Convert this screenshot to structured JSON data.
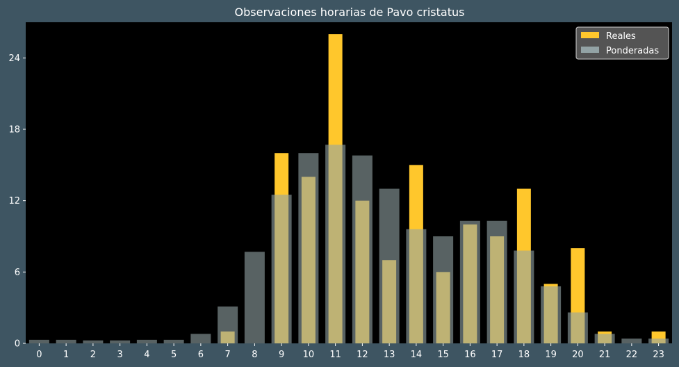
{
  "colors": {
    "background": "#3e5562",
    "plot_background": "#000000",
    "real": "#ffc72c",
    "weighted": "#93a3a5",
    "text": "#ffffff",
    "legend_background": "#545454",
    "legend_border": "#d0d0d0"
  },
  "chart_data": {
    "type": "bar",
    "title": "Observaciones horarias de Pavo cristatus",
    "xlabel": "",
    "ylabel": "",
    "categories": [
      "0",
      "1",
      "2",
      "3",
      "4",
      "5",
      "6",
      "7",
      "8",
      "9",
      "10",
      "11",
      "12",
      "13",
      "14",
      "15",
      "16",
      "17",
      "18",
      "19",
      "20",
      "21",
      "22",
      "23"
    ],
    "ylim": [
      0,
      27
    ],
    "yticks": [
      "0",
      "6",
      "12",
      "18",
      "24"
    ],
    "legend_position": "top-right",
    "grid": false,
    "series": [
      {
        "name": "Reales",
        "values": [
          0,
          0,
          0,
          0,
          0,
          0,
          0,
          1,
          0,
          16,
          14,
          26,
          12,
          7,
          15,
          6,
          10,
          9,
          13,
          5,
          8,
          1,
          0,
          1
        ]
      },
      {
        "name": "Ponderadas",
        "values": [
          0.3,
          0.3,
          0.25,
          0.25,
          0.3,
          0.3,
          0.8,
          3.1,
          7.7,
          12.5,
          16,
          16.7,
          15.8,
          13,
          9.6,
          9,
          10.3,
          10.3,
          7.8,
          4.8,
          2.6,
          0.8,
          0.4,
          0.4
        ]
      }
    ]
  }
}
